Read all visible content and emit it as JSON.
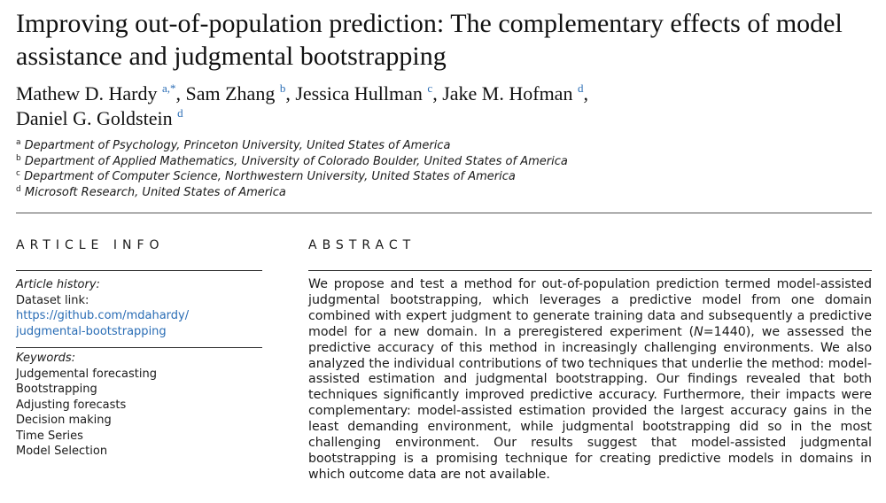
{
  "title": "Improving out-of-population prediction: The complementary effects of model assistance and judgmental bootstrapping",
  "authors": [
    {
      "name": "Mathew D. Hardy",
      "sup": "a,*"
    },
    {
      "name": "Sam Zhang",
      "sup": "b"
    },
    {
      "name": "Jessica Hullman",
      "sup": "c"
    },
    {
      "name": "Jake M. Hofman",
      "sup": "d"
    },
    {
      "name": "Daniel G. Goldstein",
      "sup": "d"
    }
  ],
  "affiliations": [
    {
      "key": "a",
      "text": "Department of Psychology, Princeton University, United States of America"
    },
    {
      "key": "b",
      "text": "Department of Applied Mathematics, University of Colorado Boulder, United States of America"
    },
    {
      "key": "c",
      "text": "Department of Computer Science, Northwestern University, United States of America"
    },
    {
      "key": "d",
      "text": "Microsoft Research, United States of America"
    }
  ],
  "article_info": {
    "heading": "ARTICLE INFO",
    "history_label": "Article history:",
    "dataset_label": "Dataset link:",
    "dataset_link_line1": "https://github.com/mdahardy/",
    "dataset_link_line2": "judgmental-bootstrapping",
    "keywords_label": "Keywords:",
    "keywords": [
      "Judgemental forecasting",
      "Bootstrapping",
      "Adjusting forecasts",
      "Decision making",
      "Time Series",
      "Model Selection"
    ]
  },
  "abstract": {
    "heading": "ABSTRACT",
    "text_before_n": "We propose and test a method for out-of-population prediction termed model-assisted judgmental bootstrapping, which leverages a predictive model from one domain combined with expert judgment to generate training data and subsequently a predictive model for a new domain. In a preregistered experiment (",
    "n_symbol": "N",
    "text_after_n": "=1440), we assessed the predictive accuracy of this method in increasingly challenging environments. We also analyzed the individual contributions of two techniques that underlie the method: model-assisted estimation and judgmental bootstrapping. Our findings revealed that both techniques significantly improved predictive accuracy. Furthermore, their impacts were complementary: model-assisted estimation provided the largest accuracy gains in the least demanding environment, while judgmental bootstrapping did so in the most challenging environment. Our results suggest that model-assisted judgmental bootstrapping is a promising technique for creating predictive models in domains in which outcome data are not available."
  },
  "colors": {
    "link": "#2a6db5",
    "text": "#1a1a1a"
  }
}
